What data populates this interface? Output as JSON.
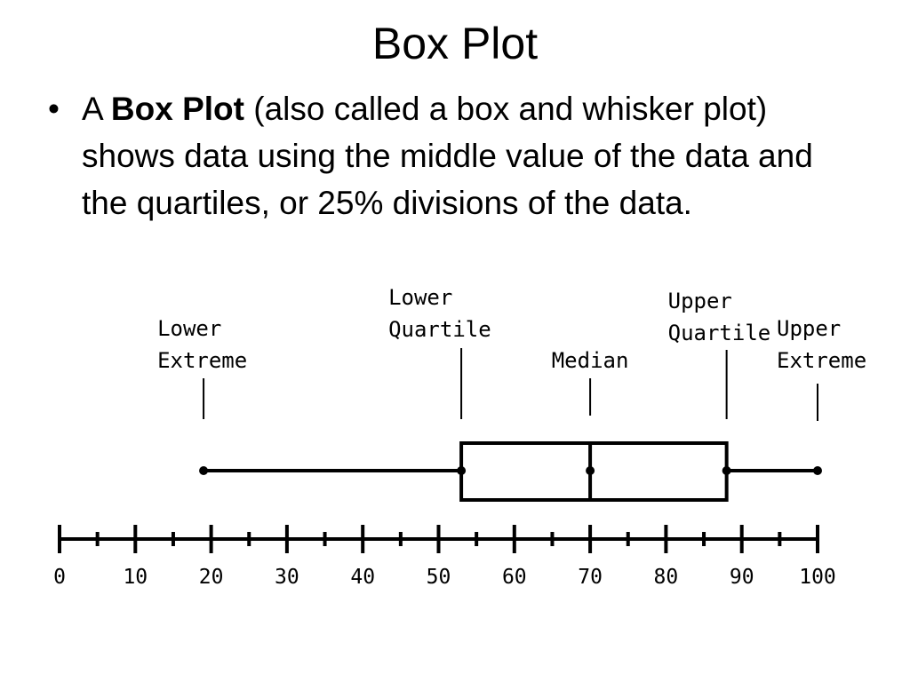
{
  "slide": {
    "title": "Box Plot",
    "bullet": {
      "lead": "A ",
      "bold": "Box Plot",
      "rest": " (also called a box and whisker plot) shows data using the middle value of the data and the quartiles, or 25% divisions of the data."
    }
  },
  "diagram": {
    "axis": {
      "min": 0,
      "max": 100,
      "major_ticks": [
        0,
        10,
        20,
        30,
        40,
        50,
        60,
        70,
        80,
        90,
        100
      ],
      "minor_ticks": [
        5,
        15,
        25,
        35,
        45,
        55,
        65,
        75,
        85,
        95
      ],
      "tick_labels": [
        "0",
        "10",
        "20",
        "30",
        "40",
        "50",
        "60",
        "70",
        "80",
        "90",
        "100"
      ]
    },
    "summary": {
      "lower_extreme": 19,
      "lower_quartile": 53,
      "median": 70,
      "upper_quartile": 88,
      "upper_extreme": 100
    },
    "labels": {
      "lower_extreme": [
        "Lower",
        "Extreme"
      ],
      "lower_quartile": [
        "Lower",
        "Quartile"
      ],
      "median": [
        "Median"
      ],
      "upper_quartile": [
        "Upper",
        "Quartile"
      ],
      "upper_extreme": [
        "Upper",
        "Extreme"
      ]
    }
  }
}
